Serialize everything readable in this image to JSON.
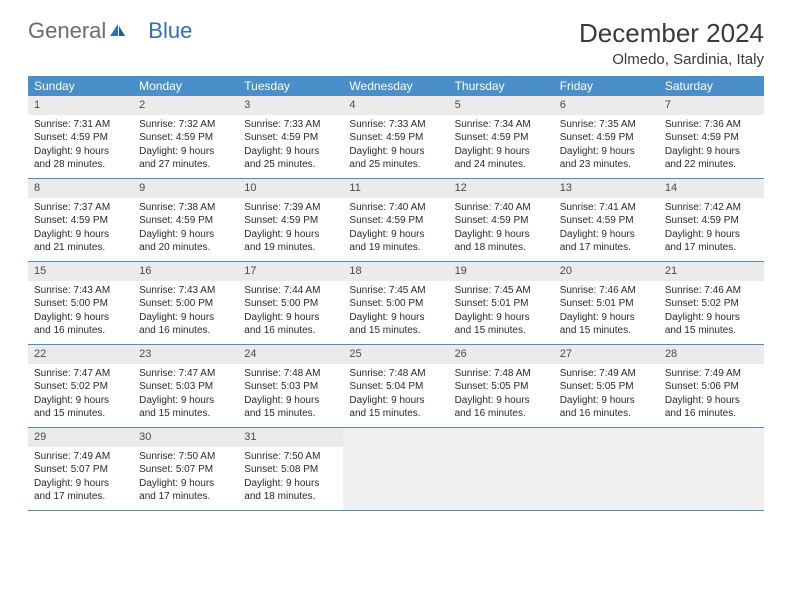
{
  "logo": {
    "text1": "General",
    "text2": "Blue"
  },
  "title": "December 2024",
  "location": "Olmedo, Sardinia, Italy",
  "weekdays": [
    "Sunday",
    "Monday",
    "Tuesday",
    "Wednesday",
    "Thursday",
    "Friday",
    "Saturday"
  ],
  "colors": {
    "header_bg": "#4a8fc9",
    "header_text": "#ffffff",
    "daynum_bg": "#ebebeb",
    "border": "#4a8fc9",
    "empty_bg": "#f0f0f0",
    "logo_gray": "#6b6b6b",
    "logo_blue": "#2f6fb5"
  },
  "weeks": [
    [
      {
        "num": "1",
        "sunrise": "Sunrise: 7:31 AM",
        "sunset": "Sunset: 4:59 PM",
        "day1": "Daylight: 9 hours",
        "day2": "and 28 minutes."
      },
      {
        "num": "2",
        "sunrise": "Sunrise: 7:32 AM",
        "sunset": "Sunset: 4:59 PM",
        "day1": "Daylight: 9 hours",
        "day2": "and 27 minutes."
      },
      {
        "num": "3",
        "sunrise": "Sunrise: 7:33 AM",
        "sunset": "Sunset: 4:59 PM",
        "day1": "Daylight: 9 hours",
        "day2": "and 25 minutes."
      },
      {
        "num": "4",
        "sunrise": "Sunrise: 7:33 AM",
        "sunset": "Sunset: 4:59 PM",
        "day1": "Daylight: 9 hours",
        "day2": "and 25 minutes."
      },
      {
        "num": "5",
        "sunrise": "Sunrise: 7:34 AM",
        "sunset": "Sunset: 4:59 PM",
        "day1": "Daylight: 9 hours",
        "day2": "and 24 minutes."
      },
      {
        "num": "6",
        "sunrise": "Sunrise: 7:35 AM",
        "sunset": "Sunset: 4:59 PM",
        "day1": "Daylight: 9 hours",
        "day2": "and 23 minutes."
      },
      {
        "num": "7",
        "sunrise": "Sunrise: 7:36 AM",
        "sunset": "Sunset: 4:59 PM",
        "day1": "Daylight: 9 hours",
        "day2": "and 22 minutes."
      }
    ],
    [
      {
        "num": "8",
        "sunrise": "Sunrise: 7:37 AM",
        "sunset": "Sunset: 4:59 PM",
        "day1": "Daylight: 9 hours",
        "day2": "and 21 minutes."
      },
      {
        "num": "9",
        "sunrise": "Sunrise: 7:38 AM",
        "sunset": "Sunset: 4:59 PM",
        "day1": "Daylight: 9 hours",
        "day2": "and 20 minutes."
      },
      {
        "num": "10",
        "sunrise": "Sunrise: 7:39 AM",
        "sunset": "Sunset: 4:59 PM",
        "day1": "Daylight: 9 hours",
        "day2": "and 19 minutes."
      },
      {
        "num": "11",
        "sunrise": "Sunrise: 7:40 AM",
        "sunset": "Sunset: 4:59 PM",
        "day1": "Daylight: 9 hours",
        "day2": "and 19 minutes."
      },
      {
        "num": "12",
        "sunrise": "Sunrise: 7:40 AM",
        "sunset": "Sunset: 4:59 PM",
        "day1": "Daylight: 9 hours",
        "day2": "and 18 minutes."
      },
      {
        "num": "13",
        "sunrise": "Sunrise: 7:41 AM",
        "sunset": "Sunset: 4:59 PM",
        "day1": "Daylight: 9 hours",
        "day2": "and 17 minutes."
      },
      {
        "num": "14",
        "sunrise": "Sunrise: 7:42 AM",
        "sunset": "Sunset: 4:59 PM",
        "day1": "Daylight: 9 hours",
        "day2": "and 17 minutes."
      }
    ],
    [
      {
        "num": "15",
        "sunrise": "Sunrise: 7:43 AM",
        "sunset": "Sunset: 5:00 PM",
        "day1": "Daylight: 9 hours",
        "day2": "and 16 minutes."
      },
      {
        "num": "16",
        "sunrise": "Sunrise: 7:43 AM",
        "sunset": "Sunset: 5:00 PM",
        "day1": "Daylight: 9 hours",
        "day2": "and 16 minutes."
      },
      {
        "num": "17",
        "sunrise": "Sunrise: 7:44 AM",
        "sunset": "Sunset: 5:00 PM",
        "day1": "Daylight: 9 hours",
        "day2": "and 16 minutes."
      },
      {
        "num": "18",
        "sunrise": "Sunrise: 7:45 AM",
        "sunset": "Sunset: 5:00 PM",
        "day1": "Daylight: 9 hours",
        "day2": "and 15 minutes."
      },
      {
        "num": "19",
        "sunrise": "Sunrise: 7:45 AM",
        "sunset": "Sunset: 5:01 PM",
        "day1": "Daylight: 9 hours",
        "day2": "and 15 minutes."
      },
      {
        "num": "20",
        "sunrise": "Sunrise: 7:46 AM",
        "sunset": "Sunset: 5:01 PM",
        "day1": "Daylight: 9 hours",
        "day2": "and 15 minutes."
      },
      {
        "num": "21",
        "sunrise": "Sunrise: 7:46 AM",
        "sunset": "Sunset: 5:02 PM",
        "day1": "Daylight: 9 hours",
        "day2": "and 15 minutes."
      }
    ],
    [
      {
        "num": "22",
        "sunrise": "Sunrise: 7:47 AM",
        "sunset": "Sunset: 5:02 PM",
        "day1": "Daylight: 9 hours",
        "day2": "and 15 minutes."
      },
      {
        "num": "23",
        "sunrise": "Sunrise: 7:47 AM",
        "sunset": "Sunset: 5:03 PM",
        "day1": "Daylight: 9 hours",
        "day2": "and 15 minutes."
      },
      {
        "num": "24",
        "sunrise": "Sunrise: 7:48 AM",
        "sunset": "Sunset: 5:03 PM",
        "day1": "Daylight: 9 hours",
        "day2": "and 15 minutes."
      },
      {
        "num": "25",
        "sunrise": "Sunrise: 7:48 AM",
        "sunset": "Sunset: 5:04 PM",
        "day1": "Daylight: 9 hours",
        "day2": "and 15 minutes."
      },
      {
        "num": "26",
        "sunrise": "Sunrise: 7:48 AM",
        "sunset": "Sunset: 5:05 PM",
        "day1": "Daylight: 9 hours",
        "day2": "and 16 minutes."
      },
      {
        "num": "27",
        "sunrise": "Sunrise: 7:49 AM",
        "sunset": "Sunset: 5:05 PM",
        "day1": "Daylight: 9 hours",
        "day2": "and 16 minutes."
      },
      {
        "num": "28",
        "sunrise": "Sunrise: 7:49 AM",
        "sunset": "Sunset: 5:06 PM",
        "day1": "Daylight: 9 hours",
        "day2": "and 16 minutes."
      }
    ],
    [
      {
        "num": "29",
        "sunrise": "Sunrise: 7:49 AM",
        "sunset": "Sunset: 5:07 PM",
        "day1": "Daylight: 9 hours",
        "day2": "and 17 minutes."
      },
      {
        "num": "30",
        "sunrise": "Sunrise: 7:50 AM",
        "sunset": "Sunset: 5:07 PM",
        "day1": "Daylight: 9 hours",
        "day2": "and 17 minutes."
      },
      {
        "num": "31",
        "sunrise": "Sunrise: 7:50 AM",
        "sunset": "Sunset: 5:08 PM",
        "day1": "Daylight: 9 hours",
        "day2": "and 18 minutes."
      },
      null,
      null,
      null,
      null
    ]
  ]
}
